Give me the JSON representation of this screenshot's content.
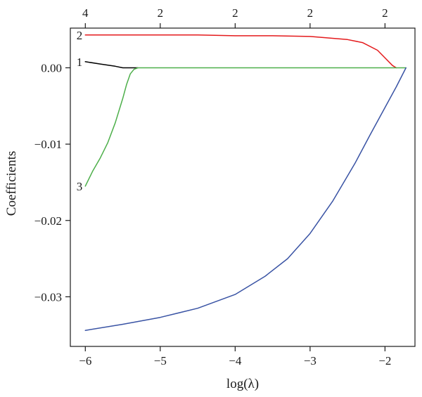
{
  "chart_data": {
    "type": "line",
    "xlabel": "log(λ)",
    "ylabel": "Coefficients",
    "xlim": [
      -6.2,
      -1.6
    ],
    "ylim": [
      -0.0365,
      0.0052
    ],
    "x_ticks": [
      -6,
      -5,
      -4,
      -3,
      -2
    ],
    "x_tick_labels": [
      "−6",
      "−5",
      "−4",
      "−3",
      "−2"
    ],
    "y_ticks": [
      0.0,
      -0.01,
      -0.02,
      -0.03
    ],
    "y_tick_labels": [
      "0.00",
      "−0.01",
      "−0.02",
      "−0.03"
    ],
    "top_axis": {
      "ticks": [
        -6,
        -5,
        -4,
        -3,
        -2
      ],
      "labels": [
        "4",
        "2",
        "2",
        "2",
        "2"
      ]
    },
    "grid": false,
    "series": [
      {
        "label": "2",
        "color": "#e41a1c",
        "x": [
          -6.0,
          -5.5,
          -5.0,
          -4.5,
          -4.0,
          -3.5,
          -3.0,
          -2.5,
          -2.3,
          -2.1,
          -2.0,
          -1.9,
          -1.85
        ],
        "y": [
          0.0043,
          0.0043,
          0.0043,
          0.0043,
          0.0042,
          0.0042,
          0.0041,
          0.0037,
          0.0033,
          0.0023,
          0.0013,
          0.0003,
          0.0
        ]
      },
      {
        "label": "1",
        "color": "#000000",
        "x": [
          -6.0,
          -5.8,
          -5.6,
          -5.5,
          -5.3
        ],
        "y": [
          0.0008,
          0.0005,
          0.0002,
          0.0,
          0.0
        ]
      },
      {
        "label": "3",
        "color": "#4daf4a",
        "x": [
          -6.0,
          -5.9,
          -5.8,
          -5.7,
          -5.6,
          -5.5,
          -5.45,
          -5.4,
          -5.35,
          -5.3,
          -2.5,
          -1.72
        ],
        "y": [
          -0.0155,
          -0.0135,
          -0.0118,
          -0.0098,
          -0.0072,
          -0.004,
          -0.0022,
          -0.0008,
          -0.0002,
          0.0,
          0.0,
          0.0
        ]
      },
      {
        "label": "",
        "color": "#3953a4",
        "x": [
          -6.0,
          -5.5,
          -5.0,
          -4.5,
          -4.0,
          -3.6,
          -3.3,
          -3.0,
          -2.7,
          -2.4,
          -2.2,
          -2.0,
          -1.85,
          -1.72
        ],
        "y": [
          -0.0344,
          -0.0336,
          -0.0327,
          -0.0315,
          -0.0297,
          -0.0273,
          -0.025,
          -0.0217,
          -0.0175,
          -0.0125,
          -0.0088,
          -0.0052,
          -0.0025,
          0.0
        ]
      }
    ]
  }
}
